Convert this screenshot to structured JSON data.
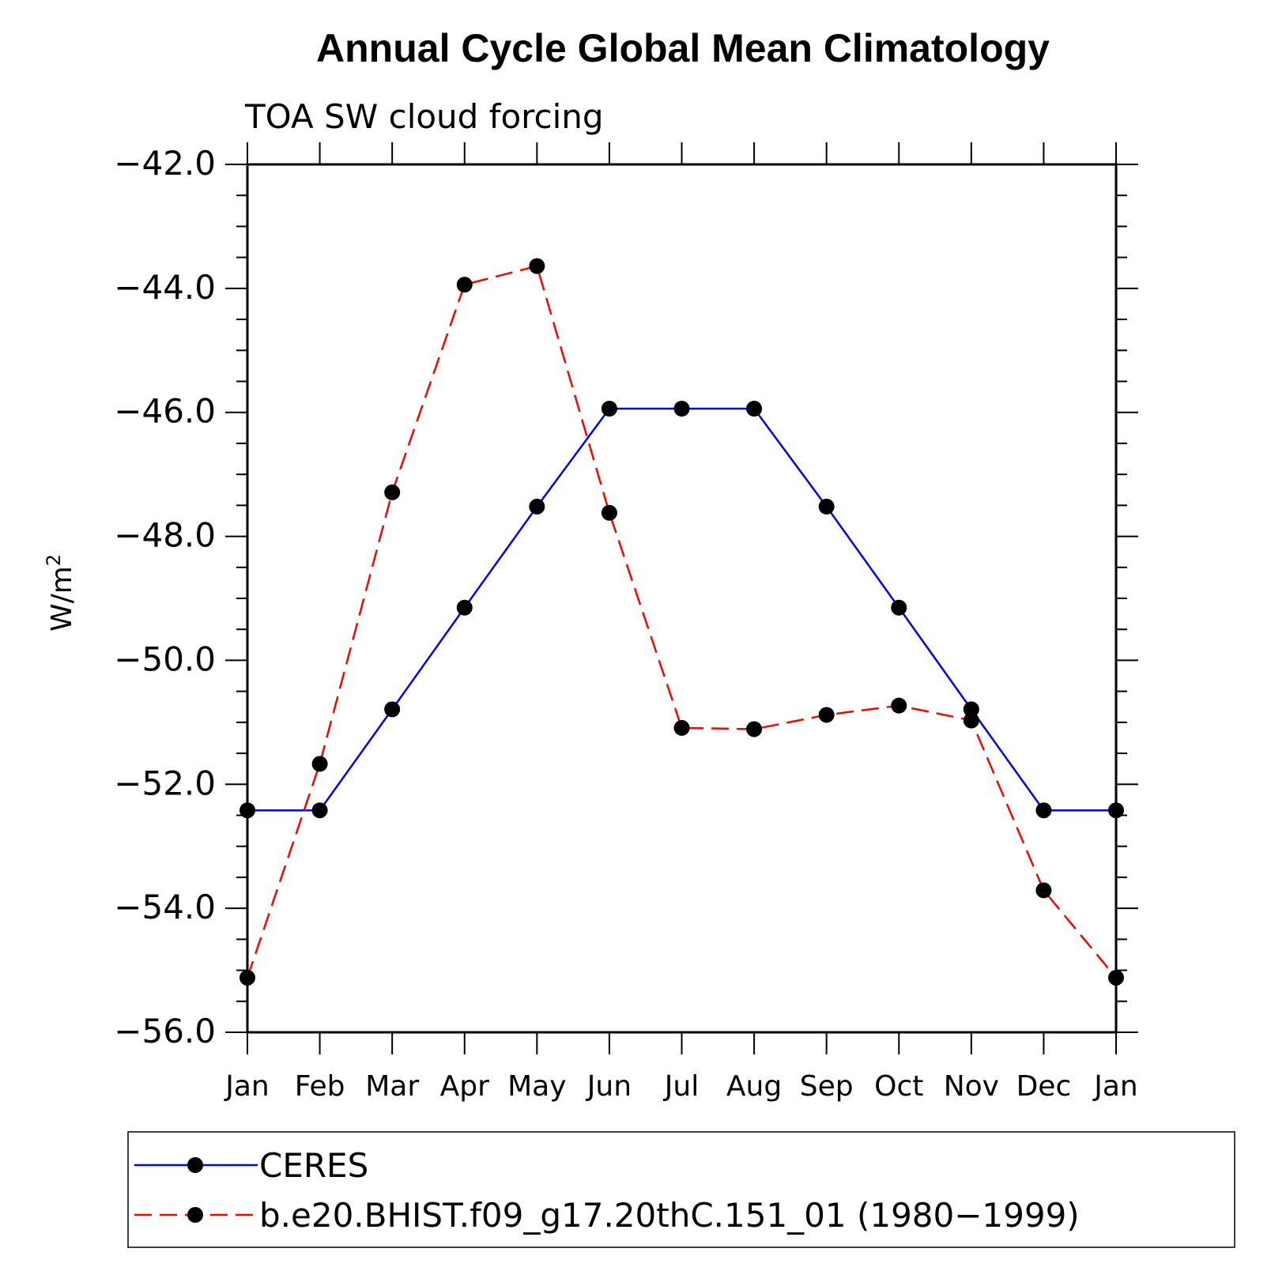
{
  "chart_data": {
    "type": "line",
    "title": "Annual Cycle Global Mean Climatology",
    "subtitle": "TOA SW cloud forcing",
    "ylabel": "W/m",
    "ylabel_sup": "2",
    "xlabel": "",
    "categories": [
      "Jan",
      "Feb",
      "Mar",
      "Apr",
      "May",
      "Jun",
      "Jul",
      "Aug",
      "Sep",
      "Oct",
      "Nov",
      "Dec",
      "Jan"
    ],
    "ylim": [
      -56.0,
      -42.0
    ],
    "y_ticks": [
      -42.0,
      -44.0,
      -46.0,
      -48.0,
      -50.0,
      -52.0,
      -54.0,
      -56.0
    ],
    "y_tick_labels": [
      "−42.0",
      "−44.0",
      "−46.0",
      "−48.0",
      "−50.0",
      "−52.0",
      "−54.0",
      "−56.0"
    ],
    "grid": false,
    "legend_position": "bottom",
    "series": [
      {
        "name": "CERES",
        "color": "#0000ff",
        "style": "solid",
        "marker": "filled-circle",
        "values": [
          -52.42,
          -52.42,
          -50.79,
          -49.15,
          -47.52,
          -45.94,
          -45.94,
          -45.94,
          -47.52,
          -49.15,
          -50.79,
          -52.42,
          -52.42
        ]
      },
      {
        "name": "b.e20.BHIST.f09_g17.20thC.151_01 (1980−1999)",
        "color": "#ff0000",
        "style": "dashed",
        "marker": "filled-circle",
        "values": [
          -55.12,
          -51.67,
          -47.29,
          -43.94,
          -43.64,
          -47.62,
          -51.09,
          -51.11,
          -50.88,
          -50.73,
          -50.97,
          -53.71,
          -55.12
        ]
      }
    ]
  }
}
